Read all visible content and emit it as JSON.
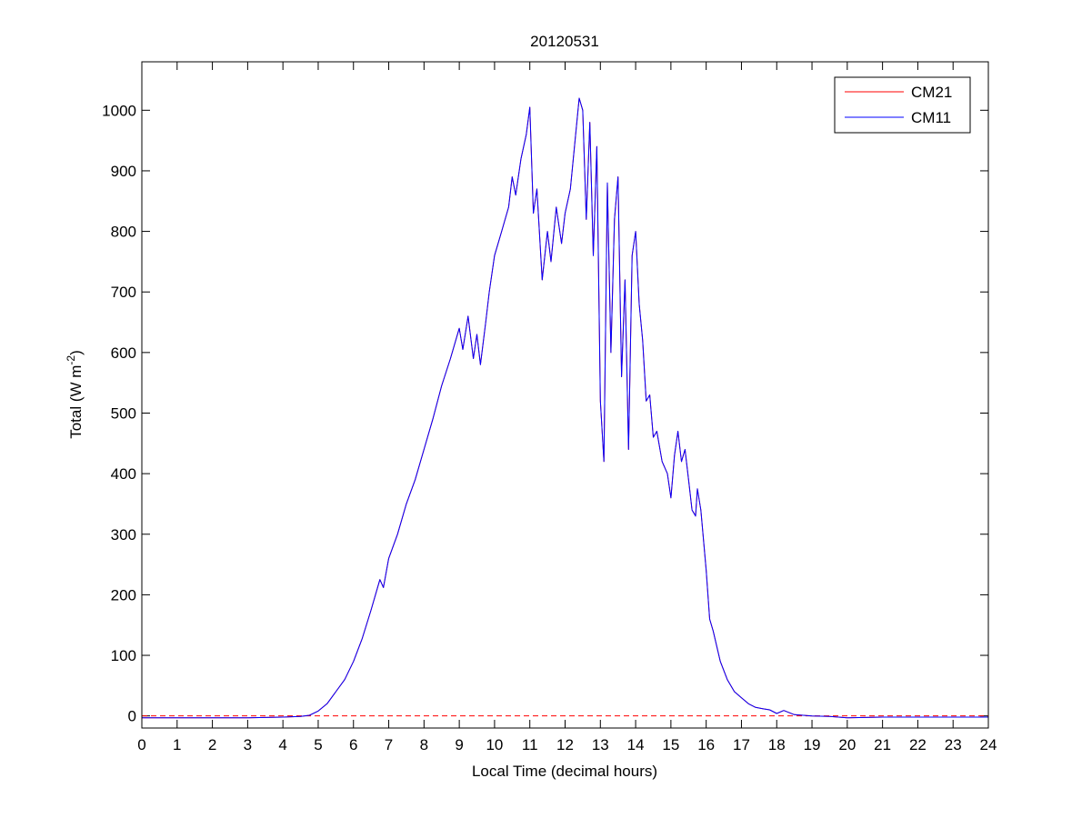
{
  "chart_data": {
    "type": "line",
    "title": "20120531",
    "xlabel": "Local Time (decimal hours)",
    "ylabel_main": "Total (W m",
    "ylabel_sup": "-2",
    "ylabel_close": ")",
    "xlim": [
      0,
      24
    ],
    "ylim": [
      -20,
      1080
    ],
    "xticks": [
      0,
      1,
      2,
      3,
      4,
      5,
      6,
      7,
      8,
      9,
      10,
      11,
      12,
      13,
      14,
      15,
      16,
      17,
      18,
      19,
      20,
      21,
      22,
      23,
      24
    ],
    "yticks": [
      0,
      100,
      200,
      300,
      400,
      500,
      600,
      700,
      800,
      900,
      1000
    ],
    "grid": false,
    "legend_position": "top-right",
    "reference_line": {
      "y": 0,
      "style": "dashed",
      "color": "#ff0000"
    },
    "series": [
      {
        "name": "CM21",
        "color": "#ff0000",
        "points": [
          [
            0,
            -3
          ],
          [
            1,
            -3
          ],
          [
            2,
            -3
          ],
          [
            3,
            -3
          ],
          [
            4,
            -2
          ],
          [
            4.5,
            -1
          ],
          [
            4.75,
            1
          ],
          [
            5,
            8
          ],
          [
            5.25,
            20
          ],
          [
            5.5,
            40
          ],
          [
            5.75,
            60
          ],
          [
            6,
            90
          ],
          [
            6.25,
            128
          ],
          [
            6.5,
            175
          ],
          [
            6.75,
            225
          ],
          [
            6.85,
            212
          ],
          [
            7,
            260
          ],
          [
            7.25,
            300
          ],
          [
            7.5,
            350
          ],
          [
            7.75,
            390
          ],
          [
            8,
            440
          ],
          [
            8.25,
            490
          ],
          [
            8.5,
            545
          ],
          [
            8.75,
            590
          ],
          [
            9,
            640
          ],
          [
            9.1,
            605
          ],
          [
            9.25,
            660
          ],
          [
            9.4,
            590
          ],
          [
            9.5,
            630
          ],
          [
            9.6,
            580
          ],
          [
            9.75,
            650
          ],
          [
            9.85,
            700
          ],
          [
            10,
            760
          ],
          [
            10.2,
            800
          ],
          [
            10.4,
            840
          ],
          [
            10.5,
            890
          ],
          [
            10.6,
            860
          ],
          [
            10.75,
            920
          ],
          [
            10.9,
            960
          ],
          [
            11,
            1005
          ],
          [
            11.1,
            830
          ],
          [
            11.2,
            870
          ],
          [
            11.35,
            720
          ],
          [
            11.5,
            800
          ],
          [
            11.6,
            750
          ],
          [
            11.75,
            840
          ],
          [
            11.9,
            780
          ],
          [
            12,
            830
          ],
          [
            12.15,
            870
          ],
          [
            12.3,
            960
          ],
          [
            12.4,
            1020
          ],
          [
            12.5,
            1000
          ],
          [
            12.6,
            820
          ],
          [
            12.7,
            980
          ],
          [
            12.8,
            760
          ],
          [
            12.9,
            940
          ],
          [
            13,
            520
          ],
          [
            13.1,
            420
          ],
          [
            13.2,
            880
          ],
          [
            13.3,
            600
          ],
          [
            13.4,
            820
          ],
          [
            13.5,
            890
          ],
          [
            13.6,
            560
          ],
          [
            13.7,
            720
          ],
          [
            13.8,
            440
          ],
          [
            13.9,
            760
          ],
          [
            14,
            800
          ],
          [
            14.1,
            680
          ],
          [
            14.2,
            620
          ],
          [
            14.3,
            520
          ],
          [
            14.4,
            530
          ],
          [
            14.5,
            460
          ],
          [
            14.6,
            470
          ],
          [
            14.75,
            420
          ],
          [
            14.9,
            400
          ],
          [
            15,
            360
          ],
          [
            15.1,
            430
          ],
          [
            15.2,
            470
          ],
          [
            15.3,
            420
          ],
          [
            15.4,
            440
          ],
          [
            15.5,
            390
          ],
          [
            15.6,
            340
          ],
          [
            15.7,
            330
          ],
          [
            15.75,
            375
          ],
          [
            15.85,
            340
          ],
          [
            16,
            240
          ],
          [
            16.1,
            160
          ],
          [
            16.2,
            140
          ],
          [
            16.4,
            90
          ],
          [
            16.6,
            60
          ],
          [
            16.8,
            40
          ],
          [
            17,
            30
          ],
          [
            17.2,
            20
          ],
          [
            17.4,
            14
          ],
          [
            17.6,
            12
          ],
          [
            17.8,
            10
          ],
          [
            18,
            4
          ],
          [
            18.2,
            9
          ],
          [
            18.5,
            2
          ],
          [
            19,
            0
          ],
          [
            19.5,
            -1
          ],
          [
            20,
            -3
          ],
          [
            21,
            -2
          ],
          [
            22,
            -2
          ],
          [
            23,
            -2
          ],
          [
            24,
            -2
          ]
        ]
      },
      {
        "name": "CM11",
        "color": "#0000ff",
        "points": [
          [
            0,
            -3
          ],
          [
            1,
            -3
          ],
          [
            2,
            -3
          ],
          [
            3,
            -3
          ],
          [
            4,
            -2
          ],
          [
            4.5,
            -1
          ],
          [
            4.75,
            1
          ],
          [
            5,
            8
          ],
          [
            5.25,
            20
          ],
          [
            5.5,
            40
          ],
          [
            5.75,
            60
          ],
          [
            6,
            90
          ],
          [
            6.25,
            128
          ],
          [
            6.5,
            175
          ],
          [
            6.75,
            225
          ],
          [
            6.85,
            212
          ],
          [
            7,
            260
          ],
          [
            7.25,
            300
          ],
          [
            7.5,
            350
          ],
          [
            7.75,
            390
          ],
          [
            8,
            440
          ],
          [
            8.25,
            490
          ],
          [
            8.5,
            545
          ],
          [
            8.75,
            590
          ],
          [
            9,
            640
          ],
          [
            9.1,
            605
          ],
          [
            9.25,
            660
          ],
          [
            9.4,
            590
          ],
          [
            9.5,
            630
          ],
          [
            9.6,
            580
          ],
          [
            9.75,
            650
          ],
          [
            9.85,
            700
          ],
          [
            10,
            760
          ],
          [
            10.2,
            800
          ],
          [
            10.4,
            840
          ],
          [
            10.5,
            890
          ],
          [
            10.6,
            860
          ],
          [
            10.75,
            920
          ],
          [
            10.9,
            960
          ],
          [
            11,
            1005
          ],
          [
            11.1,
            830
          ],
          [
            11.2,
            870
          ],
          [
            11.35,
            720
          ],
          [
            11.5,
            800
          ],
          [
            11.6,
            750
          ],
          [
            11.75,
            840
          ],
          [
            11.9,
            780
          ],
          [
            12,
            830
          ],
          [
            12.15,
            870
          ],
          [
            12.3,
            960
          ],
          [
            12.4,
            1020
          ],
          [
            12.5,
            1000
          ],
          [
            12.6,
            820
          ],
          [
            12.7,
            980
          ],
          [
            12.8,
            760
          ],
          [
            12.9,
            940
          ],
          [
            13,
            520
          ],
          [
            13.1,
            420
          ],
          [
            13.2,
            880
          ],
          [
            13.3,
            600
          ],
          [
            13.4,
            820
          ],
          [
            13.5,
            890
          ],
          [
            13.6,
            560
          ],
          [
            13.7,
            720
          ],
          [
            13.8,
            440
          ],
          [
            13.9,
            760
          ],
          [
            14,
            800
          ],
          [
            14.1,
            680
          ],
          [
            14.2,
            620
          ],
          [
            14.3,
            520
          ],
          [
            14.4,
            530
          ],
          [
            14.5,
            460
          ],
          [
            14.6,
            470
          ],
          [
            14.75,
            420
          ],
          [
            14.9,
            400
          ],
          [
            15,
            360
          ],
          [
            15.1,
            430
          ],
          [
            15.2,
            470
          ],
          [
            15.3,
            420
          ],
          [
            15.4,
            440
          ],
          [
            15.5,
            390
          ],
          [
            15.6,
            340
          ],
          [
            15.7,
            330
          ],
          [
            15.75,
            375
          ],
          [
            15.85,
            340
          ],
          [
            16,
            240
          ],
          [
            16.1,
            160
          ],
          [
            16.2,
            140
          ],
          [
            16.4,
            90
          ],
          [
            16.6,
            60
          ],
          [
            16.8,
            40
          ],
          [
            17,
            30
          ],
          [
            17.2,
            20
          ],
          [
            17.4,
            14
          ],
          [
            17.6,
            12
          ],
          [
            17.8,
            10
          ],
          [
            18,
            4
          ],
          [
            18.2,
            9
          ],
          [
            18.5,
            2
          ],
          [
            19,
            0
          ],
          [
            19.5,
            -1
          ],
          [
            20,
            -3
          ],
          [
            21,
            -2
          ],
          [
            22,
            -2
          ],
          [
            23,
            -2
          ],
          [
            24,
            -2
          ]
        ]
      }
    ]
  }
}
